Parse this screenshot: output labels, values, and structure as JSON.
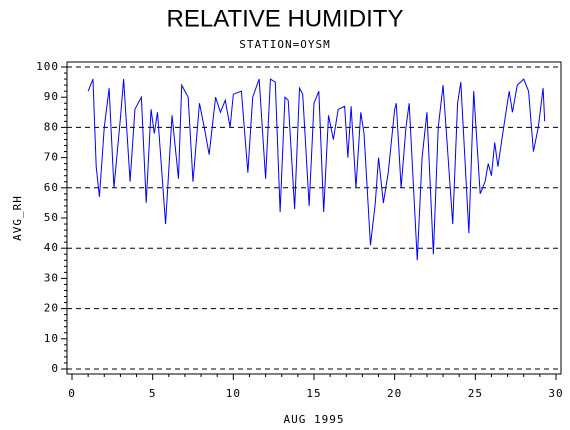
{
  "chart_data": {
    "type": "line",
    "title": "RELATIVE HUMIDITY",
    "subtitle": "STATION=OYSM",
    "x_label": "AUG 1995",
    "y_label": "AVG_RH",
    "xlim": [
      0,
      30
    ],
    "xticks": [
      0,
      5,
      10,
      15,
      20,
      25,
      30
    ],
    "ylim": [
      0,
      100
    ],
    "yticks": [
      0,
      10,
      20,
      30,
      40,
      50,
      60,
      70,
      80,
      90,
      100
    ],
    "ygrid": [
      0,
      20,
      40,
      60,
      80,
      100
    ],
    "series": [
      {
        "name": "AVG_RH",
        "color": "#0000ff",
        "x": [
          1.0,
          1.3,
          1.5,
          1.7,
          2.0,
          2.3,
          2.6,
          3.0,
          3.2,
          3.6,
          3.9,
          4.3,
          4.6,
          4.9,
          5.1,
          5.3,
          5.8,
          6.2,
          6.6,
          6.8,
          7.2,
          7.5,
          7.9,
          8.2,
          8.5,
          8.9,
          9.2,
          9.5,
          9.8,
          10.0,
          10.5,
          10.9,
          11.2,
          11.6,
          12.0,
          12.3,
          12.6,
          12.9,
          13.2,
          13.4,
          13.8,
          14.1,
          14.3,
          14.7,
          15.0,
          15.3,
          15.6,
          15.9,
          16.2,
          16.5,
          16.9,
          17.1,
          17.3,
          17.6,
          17.9,
          18.1,
          18.5,
          18.8,
          19.0,
          19.3,
          19.6,
          20.0,
          20.1,
          20.4,
          20.7,
          20.9,
          21.4,
          21.7,
          22.0,
          22.4,
          22.7,
          23.0,
          23.6,
          23.9,
          24.1,
          24.6,
          24.9,
          25.3,
          25.6,
          25.8,
          26.0,
          26.2,
          26.4,
          26.7,
          27.1,
          27.3,
          27.6,
          28.0,
          28.3,
          28.6,
          28.9,
          29.2,
          29.3
        ],
        "values": [
          92,
          96,
          67,
          57,
          80,
          93,
          60,
          83,
          96,
          62,
          86,
          90,
          55,
          86,
          78,
          85,
          48,
          84,
          63,
          94,
          90,
          62,
          88,
          80,
          71,
          90,
          85,
          89,
          80,
          91,
          92,
          65,
          90,
          96,
          63,
          96,
          95,
          52,
          90,
          89,
          53,
          93,
          91,
          54,
          88,
          92,
          52,
          84,
          76,
          86,
          87,
          70,
          87,
          60,
          85,
          78,
          41,
          55,
          70,
          55,
          65,
          86,
          88,
          60,
          80,
          88,
          36,
          70,
          85,
          38,
          80,
          94,
          48,
          88,
          95,
          45,
          92,
          58,
          62,
          68,
          64,
          75,
          67,
          78,
          92,
          85,
          94,
          96,
          92,
          72,
          80,
          93,
          82
        ]
      }
    ]
  }
}
